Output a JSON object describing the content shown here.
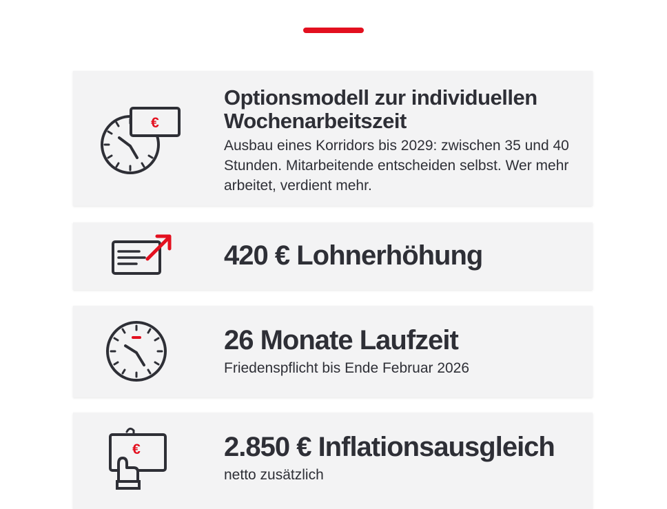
{
  "colors": {
    "accent": "#e3101f",
    "text": "#2e2f36",
    "card_bg": "#f3f3f4"
  },
  "cards": [
    {
      "icon": "clock-with-euro-note-icon",
      "title": "Optionsmodell zur individuellen Wochenarbeitszeit",
      "desc": "Ausbau eines Korridors bis 2029: zwischen 35 und 40 Stunden. Mitarbeitende entscheiden selbst. Wer mehr arbeitet, verdient mehr.",
      "euro": "€"
    },
    {
      "icon": "payslip-with-rising-arrow-icon",
      "title": "420 € Lohnerhöhung"
    },
    {
      "icon": "clock-icon",
      "title": "26 Monate Laufzeit",
      "desc": "Friedenspflicht bis Ende Februar 2026"
    },
    {
      "icon": "hand-holding-euro-note-icon",
      "title": "2.850 € Inflationsausgleich",
      "desc": "netto zusätzlich",
      "euro": "€"
    }
  ]
}
